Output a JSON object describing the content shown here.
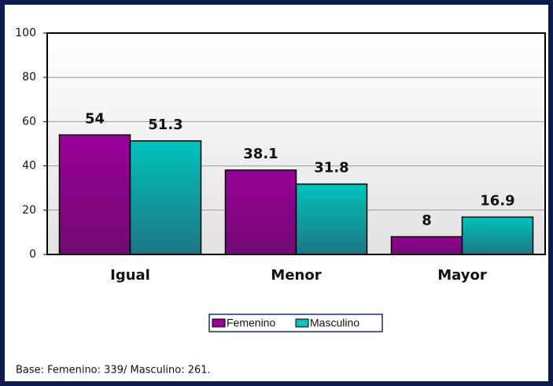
{
  "chart_data": {
    "type": "bar",
    "categories": [
      "Igual",
      "Menor",
      "Mayor"
    ],
    "series": [
      {
        "name": "Femenino",
        "color": "#990099",
        "values": [
          54,
          38.1,
          8
        ]
      },
      {
        "name": "Masculino",
        "color": "#00c4bc",
        "values": [
          51.3,
          31.8,
          16.9
        ]
      }
    ],
    "ylim": [
      0,
      100
    ],
    "yticks": [
      0,
      20,
      40,
      60,
      80,
      100
    ],
    "grid": true,
    "legend": "bottom",
    "footnote": "Base: Femenino: 339/ Masculino: 261."
  }
}
